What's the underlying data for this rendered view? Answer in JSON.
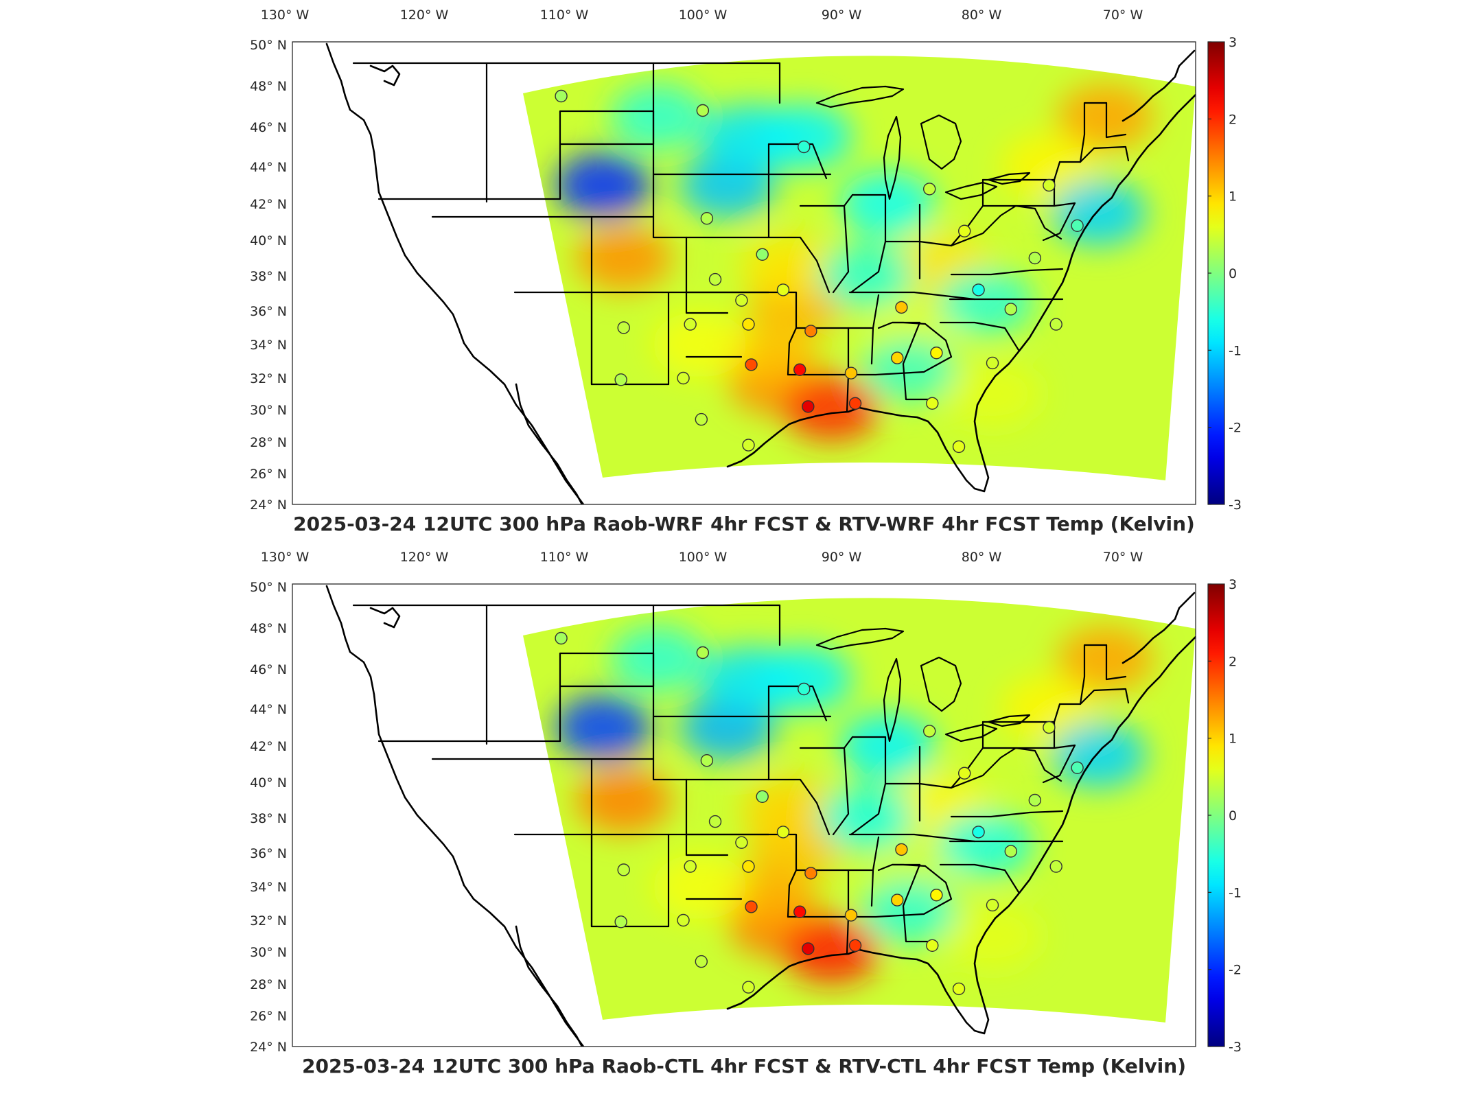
{
  "chart_data": [
    {
      "type": "heatmap",
      "title": "2025-03-24 12UTC 300 hPa Raob-WRF 4hr FCST & RTV-WRF 4hr FCST Temp (Kelvin)",
      "projection": "lambert-conformal-conus",
      "xlabel": "",
      "ylabel": "",
      "x_ticks": [
        "130° W",
        "120° W",
        "110° W",
        "100° W",
        "90° W",
        "80° W",
        "70° W"
      ],
      "y_ticks": [
        "50° N",
        "48° N",
        "46° N",
        "44° N",
        "42° N",
        "40° N",
        "38° N",
        "36° N",
        "34° N",
        "32° N",
        "30° N",
        "28° N",
        "26° N",
        "24° N"
      ],
      "colorbar": {
        "min": -3,
        "max": 3,
        "ticks": [
          "3",
          "2",
          "1",
          "0",
          "-1",
          "-2",
          "-3"
        ],
        "colormap": "jet"
      },
      "field_blobs": [
        {
          "lon": -95.5,
          "lat": 31.8,
          "value": 1.5
        },
        {
          "lon": -91.5,
          "lat": 30.1,
          "value": 2.0
        },
        {
          "lon": -94.0,
          "lat": 36.5,
          "value": 1.2
        },
        {
          "lon": -94.5,
          "lat": 38.5,
          "value": 0.9
        },
        {
          "lon": -96.0,
          "lat": 33.5,
          "value": 1.1
        },
        {
          "lon": -106.5,
          "lat": 39.0,
          "value": 1.4
        },
        {
          "lon": -72.0,
          "lat": 46.5,
          "value": 1.3
        },
        {
          "lon": -76.0,
          "lat": 44.0,
          "value": 0.8
        },
        {
          "lon": -83.5,
          "lat": 38.5,
          "value": 0.9
        },
        {
          "lon": -85.5,
          "lat": 34.5,
          "value": 0.6
        },
        {
          "lon": -101.0,
          "lat": 34.0,
          "value": 0.7
        },
        {
          "lon": -80.0,
          "lat": 31.0,
          "value": 0.6
        },
        {
          "lon": -108.0,
          "lat": 43.0,
          "value": -2.0
        },
        {
          "lon": -99.0,
          "lat": 43.0,
          "value": -1.1
        },
        {
          "lon": -97.5,
          "lat": 45.5,
          "value": -0.9
        },
        {
          "lon": -93.5,
          "lat": 45.5,
          "value": -0.8
        },
        {
          "lon": -87.5,
          "lat": 42.0,
          "value": -0.7
        },
        {
          "lon": -72.5,
          "lat": 41.5,
          "value": -1.0
        },
        {
          "lon": -89.0,
          "lat": 38.0,
          "value": -0.5
        },
        {
          "lon": -104.0,
          "lat": 46.5,
          "value": -0.5
        },
        {
          "lon": -80.5,
          "lat": 36.5,
          "value": -0.5
        },
        {
          "lon": -86.0,
          "lat": 32.5,
          "value": -0.4
        }
      ],
      "stations": [
        {
          "lon": -111.0,
          "lat": 47.5,
          "value": 0.2
        },
        {
          "lon": -100.8,
          "lat": 46.8,
          "value": 0.3
        },
        {
          "lon": -93.5,
          "lat": 45.0,
          "value": -0.5
        },
        {
          "lon": -84.5,
          "lat": 42.8,
          "value": 0.4
        },
        {
          "lon": -76.0,
          "lat": 43.0,
          "value": 0.5
        },
        {
          "lon": -100.5,
          "lat": 41.2,
          "value": 0.3
        },
        {
          "lon": -96.5,
          "lat": 39.2,
          "value": 0.1
        },
        {
          "lon": -99.9,
          "lat": 37.8,
          "value": 0.4
        },
        {
          "lon": -95.0,
          "lat": 37.2,
          "value": 0.6
        },
        {
          "lon": -98.0,
          "lat": 36.6,
          "value": 0.5
        },
        {
          "lon": -86.5,
          "lat": 36.2,
          "value": 1.1
        },
        {
          "lon": -81.0,
          "lat": 37.2,
          "value": -0.6
        },
        {
          "lon": -78.7,
          "lat": 36.1,
          "value": 0.3
        },
        {
          "lon": -106.5,
          "lat": 35.0,
          "value": 0.4
        },
        {
          "lon": -101.7,
          "lat": 35.2,
          "value": 0.5
        },
        {
          "lon": -97.5,
          "lat": 35.2,
          "value": 0.9
        },
        {
          "lon": -93.0,
          "lat": 34.8,
          "value": 1.5
        },
        {
          "lon": -84.0,
          "lat": 33.5,
          "value": 0.8
        },
        {
          "lon": -86.8,
          "lat": 33.2,
          "value": 1.0
        },
        {
          "lon": -80.0,
          "lat": 32.9,
          "value": 0.5
        },
        {
          "lon": -97.3,
          "lat": 32.8,
          "value": 1.8
        },
        {
          "lon": -93.8,
          "lat": 32.5,
          "value": 2.2
        },
        {
          "lon": -90.1,
          "lat": 32.3,
          "value": 1.1
        },
        {
          "lon": -102.2,
          "lat": 32.0,
          "value": 0.5
        },
        {
          "lon": -106.7,
          "lat": 31.9,
          "value": 0.3
        },
        {
          "lon": -93.2,
          "lat": 30.2,
          "value": 2.4
        },
        {
          "lon": -89.8,
          "lat": 30.4,
          "value": 1.9
        },
        {
          "lon": -84.3,
          "lat": 30.4,
          "value": 0.6
        },
        {
          "lon": -100.9,
          "lat": 29.4,
          "value": 0.4
        },
        {
          "lon": -97.5,
          "lat": 27.8,
          "value": 0.5
        },
        {
          "lon": -82.4,
          "lat": 27.7,
          "value": 0.6
        },
        {
          "lon": -75.5,
          "lat": 35.2,
          "value": 0.4
        },
        {
          "lon": -74.0,
          "lat": 40.8,
          "value": -0.3
        },
        {
          "lon": -77.0,
          "lat": 39.0,
          "value": 0.3
        },
        {
          "lon": -82.0,
          "lat": 40.5,
          "value": 0.6
        }
      ]
    },
    {
      "type": "heatmap",
      "title": "2025-03-24 12UTC 300 hPa Raob-CTL 4hr FCST & RTV-CTL 4hr FCST Temp (Kelvin)",
      "projection": "lambert-conformal-conus",
      "xlabel": "",
      "ylabel": "",
      "x_ticks": [
        "130° W",
        "120° W",
        "110° W",
        "100° W",
        "90° W",
        "80° W",
        "70° W"
      ],
      "y_ticks": [
        "50° N",
        "48° N",
        "46° N",
        "44° N",
        "42° N",
        "40° N",
        "38° N",
        "36° N",
        "34° N",
        "32° N",
        "30° N",
        "28° N",
        "26° N",
        "24° N"
      ],
      "colorbar": {
        "min": -3,
        "max": 3,
        "ticks": [
          "3",
          "2",
          "1",
          "0",
          "-1",
          "-2",
          "-3"
        ],
        "colormap": "jet"
      },
      "field_blobs": [
        {
          "lon": -95.5,
          "lat": 31.8,
          "value": 1.6
        },
        {
          "lon": -91.5,
          "lat": 30.1,
          "value": 2.1
        },
        {
          "lon": -94.0,
          "lat": 36.5,
          "value": 1.1
        },
        {
          "lon": -94.5,
          "lat": 38.5,
          "value": 1.0
        },
        {
          "lon": -96.0,
          "lat": 33.5,
          "value": 1.2
        },
        {
          "lon": -106.5,
          "lat": 39.0,
          "value": 1.5
        },
        {
          "lon": -72.0,
          "lat": 46.5,
          "value": 1.3
        },
        {
          "lon": -76.0,
          "lat": 44.0,
          "value": 0.8
        },
        {
          "lon": -83.5,
          "lat": 38.5,
          "value": 0.8
        },
        {
          "lon": -85.5,
          "lat": 34.5,
          "value": 0.5
        },
        {
          "lon": -101.0,
          "lat": 34.0,
          "value": 0.7
        },
        {
          "lon": -80.0,
          "lat": 31.0,
          "value": 0.6
        },
        {
          "lon": -108.0,
          "lat": 43.0,
          "value": -1.9
        },
        {
          "lon": -99.0,
          "lat": 43.0,
          "value": -1.2
        },
        {
          "lon": -97.5,
          "lat": 45.5,
          "value": -0.9
        },
        {
          "lon": -93.5,
          "lat": 45.5,
          "value": -0.8
        },
        {
          "lon": -87.5,
          "lat": 42.0,
          "value": -0.8
        },
        {
          "lon": -72.5,
          "lat": 41.5,
          "value": -1.0
        },
        {
          "lon": -89.0,
          "lat": 38.0,
          "value": -0.6
        },
        {
          "lon": -104.0,
          "lat": 46.5,
          "value": -0.5
        },
        {
          "lon": -80.5,
          "lat": 36.5,
          "value": -0.6
        },
        {
          "lon": -86.0,
          "lat": 32.5,
          "value": -0.5
        }
      ],
      "stations": [
        {
          "lon": -111.0,
          "lat": 47.5,
          "value": 0.2
        },
        {
          "lon": -100.8,
          "lat": 46.8,
          "value": 0.3
        },
        {
          "lon": -93.5,
          "lat": 45.0,
          "value": -0.5
        },
        {
          "lon": -84.5,
          "lat": 42.8,
          "value": 0.4
        },
        {
          "lon": -76.0,
          "lat": 43.0,
          "value": 0.5
        },
        {
          "lon": -100.5,
          "lat": 41.2,
          "value": 0.3
        },
        {
          "lon": -96.5,
          "lat": 39.2,
          "value": 0.1
        },
        {
          "lon": -99.9,
          "lat": 37.8,
          "value": 0.4
        },
        {
          "lon": -95.0,
          "lat": 37.2,
          "value": 0.6
        },
        {
          "lon": -98.0,
          "lat": 36.6,
          "value": 0.5
        },
        {
          "lon": -86.5,
          "lat": 36.2,
          "value": 1.1
        },
        {
          "lon": -81.0,
          "lat": 37.2,
          "value": -0.6
        },
        {
          "lon": -78.7,
          "lat": 36.1,
          "value": 0.3
        },
        {
          "lon": -106.5,
          "lat": 35.0,
          "value": 0.4
        },
        {
          "lon": -101.7,
          "lat": 35.2,
          "value": 0.5
        },
        {
          "lon": -97.5,
          "lat": 35.2,
          "value": 0.9
        },
        {
          "lon": -93.0,
          "lat": 34.8,
          "value": 1.5
        },
        {
          "lon": -84.0,
          "lat": 33.5,
          "value": 0.8
        },
        {
          "lon": -86.8,
          "lat": 33.2,
          "value": 1.0
        },
        {
          "lon": -80.0,
          "lat": 32.9,
          "value": 0.5
        },
        {
          "lon": -97.3,
          "lat": 32.8,
          "value": 1.8
        },
        {
          "lon": -93.8,
          "lat": 32.5,
          "value": 2.2
        },
        {
          "lon": -90.1,
          "lat": 32.3,
          "value": 1.1
        },
        {
          "lon": -102.2,
          "lat": 32.0,
          "value": 0.5
        },
        {
          "lon": -106.7,
          "lat": 31.9,
          "value": 0.3
        },
        {
          "lon": -93.2,
          "lat": 30.2,
          "value": 2.4
        },
        {
          "lon": -89.8,
          "lat": 30.4,
          "value": 1.9
        },
        {
          "lon": -84.3,
          "lat": 30.4,
          "value": 0.6
        },
        {
          "lon": -100.9,
          "lat": 29.4,
          "value": 0.4
        },
        {
          "lon": -97.5,
          "lat": 27.8,
          "value": 0.5
        },
        {
          "lon": -82.4,
          "lat": 27.7,
          "value": 0.6
        },
        {
          "lon": -75.5,
          "lat": 35.2,
          "value": 0.4
        },
        {
          "lon": -74.0,
          "lat": 40.8,
          "value": -0.3
        },
        {
          "lon": -77.0,
          "lat": 39.0,
          "value": 0.3
        },
        {
          "lon": -82.0,
          "lat": 40.5,
          "value": 0.6
        }
      ]
    }
  ]
}
